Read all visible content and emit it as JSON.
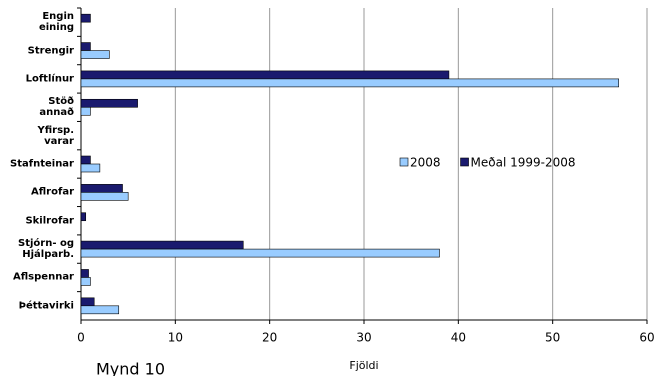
{
  "chart_data": {
    "type": "bar",
    "orientation": "horizontal",
    "caption": "Mynd 10",
    "x_label": "Fjöldi",
    "categories": [
      "Engin\neining",
      "Strengir",
      "Loftlínur",
      "Stöð\nannað",
      "Yfirsp.\nvarar",
      "Stafnteinar",
      "Aflrofar",
      "Skilrofar",
      "Stjórn- og\nHjálparb.",
      "Aflspennar",
      "Þéttavirki"
    ],
    "series": [
      {
        "name": "2008",
        "color": "#99ccff",
        "values": [
          0,
          3,
          57,
          1,
          0,
          2,
          5,
          0,
          38,
          1,
          4
        ]
      },
      {
        "name": "Meðal 1999-2008",
        "color": "#1a1a6e",
        "values": [
          1,
          1,
          39,
          6,
          0,
          1,
          4.4,
          0.5,
          17.2,
          0.8,
          1.4
        ]
      }
    ],
    "xlim": [
      0,
      60
    ],
    "xticks": [
      0,
      10,
      20,
      30,
      40,
      50,
      60
    ],
    "grid": true
  }
}
